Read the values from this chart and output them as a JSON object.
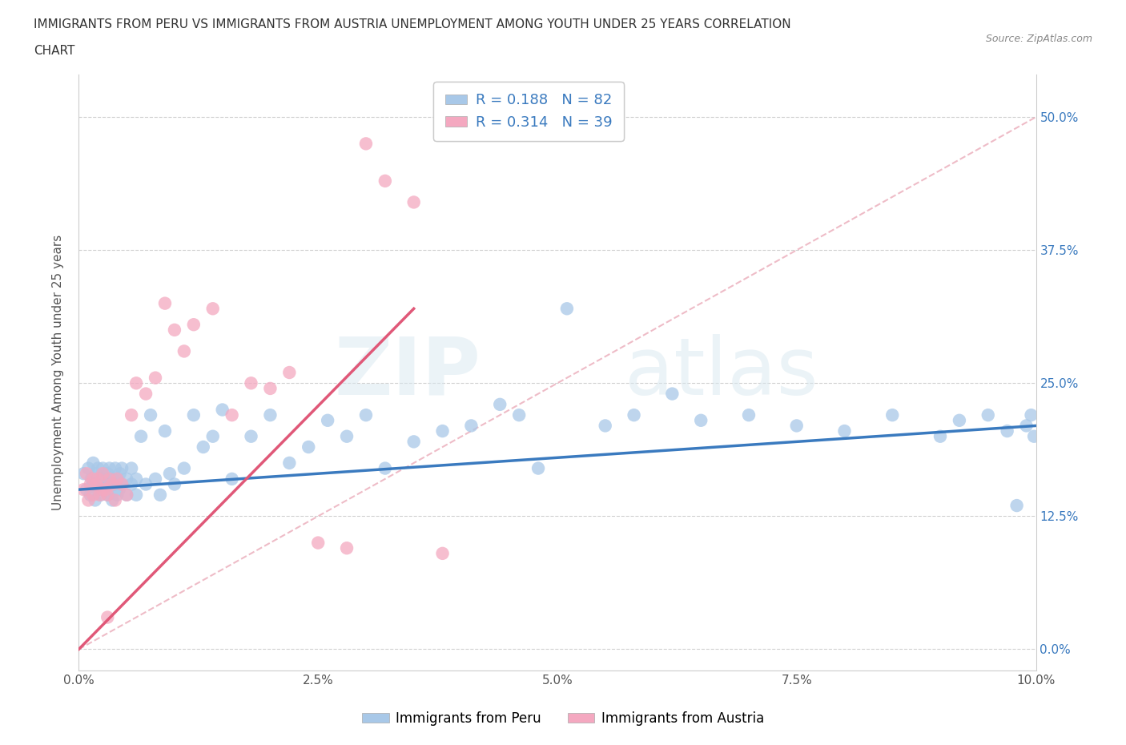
{
  "title_line1": "IMMIGRANTS FROM PERU VS IMMIGRANTS FROM AUSTRIA UNEMPLOYMENT AMONG YOUTH UNDER 25 YEARS CORRELATION",
  "title_line2": "CHART",
  "source_text": "Source: ZipAtlas.com",
  "ylabel": "Unemployment Among Youth under 25 years",
  "xlabel_vals": [
    0.0,
    2.5,
    5.0,
    7.5,
    10.0
  ],
  "ylabel_vals": [
    0.0,
    12.5,
    25.0,
    37.5,
    50.0
  ],
  "xlim": [
    0.0,
    10.0
  ],
  "ylim": [
    -2.0,
    54.0
  ],
  "peru_R": 0.188,
  "peru_N": 82,
  "austria_R": 0.314,
  "austria_N": 39,
  "peru_color": "#a8c8e8",
  "austria_color": "#f4a8c0",
  "peru_line_color": "#3a7abf",
  "austria_line_color": "#e05878",
  "diag_color": "#e8a0b0",
  "watermark_zip": "ZIP",
  "watermark_atlas": "atlas",
  "legend_labels": [
    "Immigrants from Peru",
    "Immigrants from Austria"
  ],
  "peru_x": [
    0.05,
    0.08,
    0.1,
    0.12,
    0.13,
    0.15,
    0.15,
    0.17,
    0.18,
    0.2,
    0.2,
    0.22,
    0.23,
    0.25,
    0.25,
    0.27,
    0.28,
    0.3,
    0.3,
    0.32,
    0.33,
    0.35,
    0.35,
    0.37,
    0.38,
    0.4,
    0.4,
    0.42,
    0.43,
    0.45,
    0.45,
    0.5,
    0.5,
    0.55,
    0.55,
    0.6,
    0.6,
    0.65,
    0.7,
    0.75,
    0.8,
    0.85,
    0.9,
    0.95,
    1.0,
    1.1,
    1.2,
    1.3,
    1.4,
    1.5,
    1.6,
    1.8,
    2.0,
    2.2,
    2.4,
    2.6,
    2.8,
    3.0,
    3.2,
    3.5,
    3.8,
    4.1,
    4.4,
    4.6,
    4.8,
    5.1,
    5.5,
    5.8,
    6.2,
    6.5,
    7.0,
    7.5,
    8.0,
    8.5,
    9.0,
    9.2,
    9.5,
    9.7,
    9.8,
    9.9,
    9.95,
    9.98
  ],
  "peru_y": [
    16.5,
    15.0,
    17.0,
    14.5,
    16.0,
    15.5,
    17.5,
    14.0,
    16.5,
    15.0,
    17.0,
    16.0,
    14.5,
    15.5,
    17.0,
    16.0,
    15.0,
    16.5,
    14.5,
    17.0,
    15.5,
    16.0,
    14.0,
    15.5,
    17.0,
    16.0,
    14.5,
    15.0,
    16.5,
    15.5,
    17.0,
    16.0,
    14.5,
    15.5,
    17.0,
    16.0,
    14.5,
    20.0,
    15.5,
    22.0,
    16.0,
    14.5,
    20.5,
    16.5,
    15.5,
    17.0,
    22.0,
    19.0,
    20.0,
    22.5,
    16.0,
    20.0,
    22.0,
    17.5,
    19.0,
    21.5,
    20.0,
    22.0,
    17.0,
    19.5,
    20.5,
    21.0,
    23.0,
    22.0,
    17.0,
    32.0,
    21.0,
    22.0,
    24.0,
    21.5,
    22.0,
    21.0,
    20.5,
    22.0,
    20.0,
    21.5,
    22.0,
    20.5,
    13.5,
    21.0,
    22.0,
    20.0
  ],
  "austria_x": [
    0.05,
    0.08,
    0.1,
    0.12,
    0.15,
    0.15,
    0.18,
    0.2,
    0.22,
    0.25,
    0.25,
    0.28,
    0.3,
    0.32,
    0.35,
    0.38,
    0.4,
    0.45,
    0.5,
    0.55,
    0.6,
    0.7,
    0.8,
    0.9,
    1.0,
    1.1,
    1.2,
    1.4,
    1.6,
    1.8,
    2.0,
    2.2,
    2.5,
    2.8,
    3.0,
    3.2,
    3.5,
    3.8,
    0.3
  ],
  "austria_y": [
    15.0,
    16.5,
    14.0,
    15.5,
    16.0,
    14.5,
    15.5,
    16.0,
    14.5,
    15.0,
    16.5,
    15.0,
    14.5,
    16.0,
    15.5,
    14.0,
    16.0,
    15.5,
    14.5,
    22.0,
    25.0,
    24.0,
    25.5,
    32.5,
    30.0,
    28.0,
    30.5,
    32.0,
    22.0,
    25.0,
    24.5,
    26.0,
    10.0,
    9.5,
    47.5,
    44.0,
    42.0,
    9.0,
    3.0
  ],
  "peru_line_x0": 0.0,
  "peru_line_y0": 15.0,
  "peru_line_x1": 10.0,
  "peru_line_y1": 21.0,
  "austria_line_x0": 0.0,
  "austria_line_y0": 0.0,
  "austria_line_x1": 3.5,
  "austria_line_y1": 32.0,
  "diag_x0": 0.0,
  "diag_y0": 0.0,
  "diag_x1": 10.0,
  "diag_y1": 50.0
}
